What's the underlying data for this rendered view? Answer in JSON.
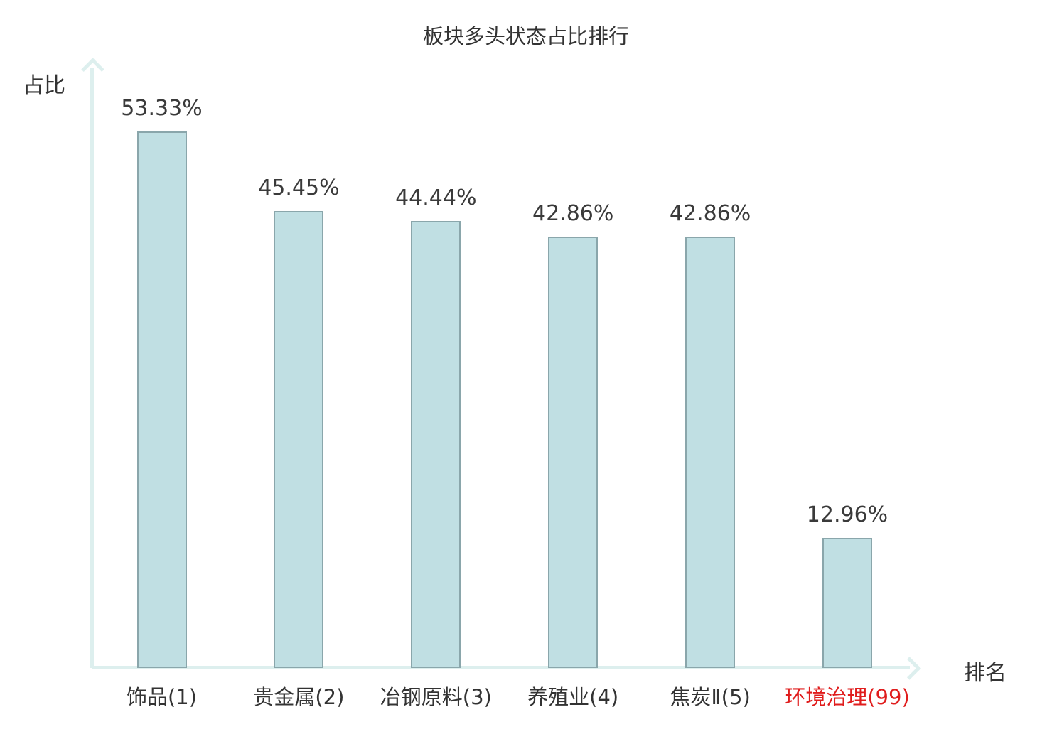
{
  "chart_data": {
    "type": "bar",
    "title": "板块多头状态占比排行",
    "xlabel": "排名",
    "ylabel": "占比",
    "categories": [
      "饰品(1)",
      "贵金属(2)",
      "冶钢原料(3)",
      "养殖业(4)",
      "焦炭Ⅱ(5)",
      "环境治理(99)"
    ],
    "values": [
      53.33,
      45.45,
      44.44,
      42.86,
      42.86,
      12.96
    ],
    "value_labels": [
      "53.33%",
      "45.45%",
      "44.44%",
      "42.86%",
      "42.86%",
      "12.96%"
    ],
    "ylim": [
      0,
      60
    ],
    "grid": false,
    "legend": null,
    "highlighted_category_index": 5
  },
  "colors": {
    "bar_fill": "#c0dfe3",
    "bar_border": "#8aa6ab",
    "axis": "#ddefee",
    "text": "#333333",
    "value_text": "#3a3a3a",
    "highlight_text": "#e01d1d"
  }
}
